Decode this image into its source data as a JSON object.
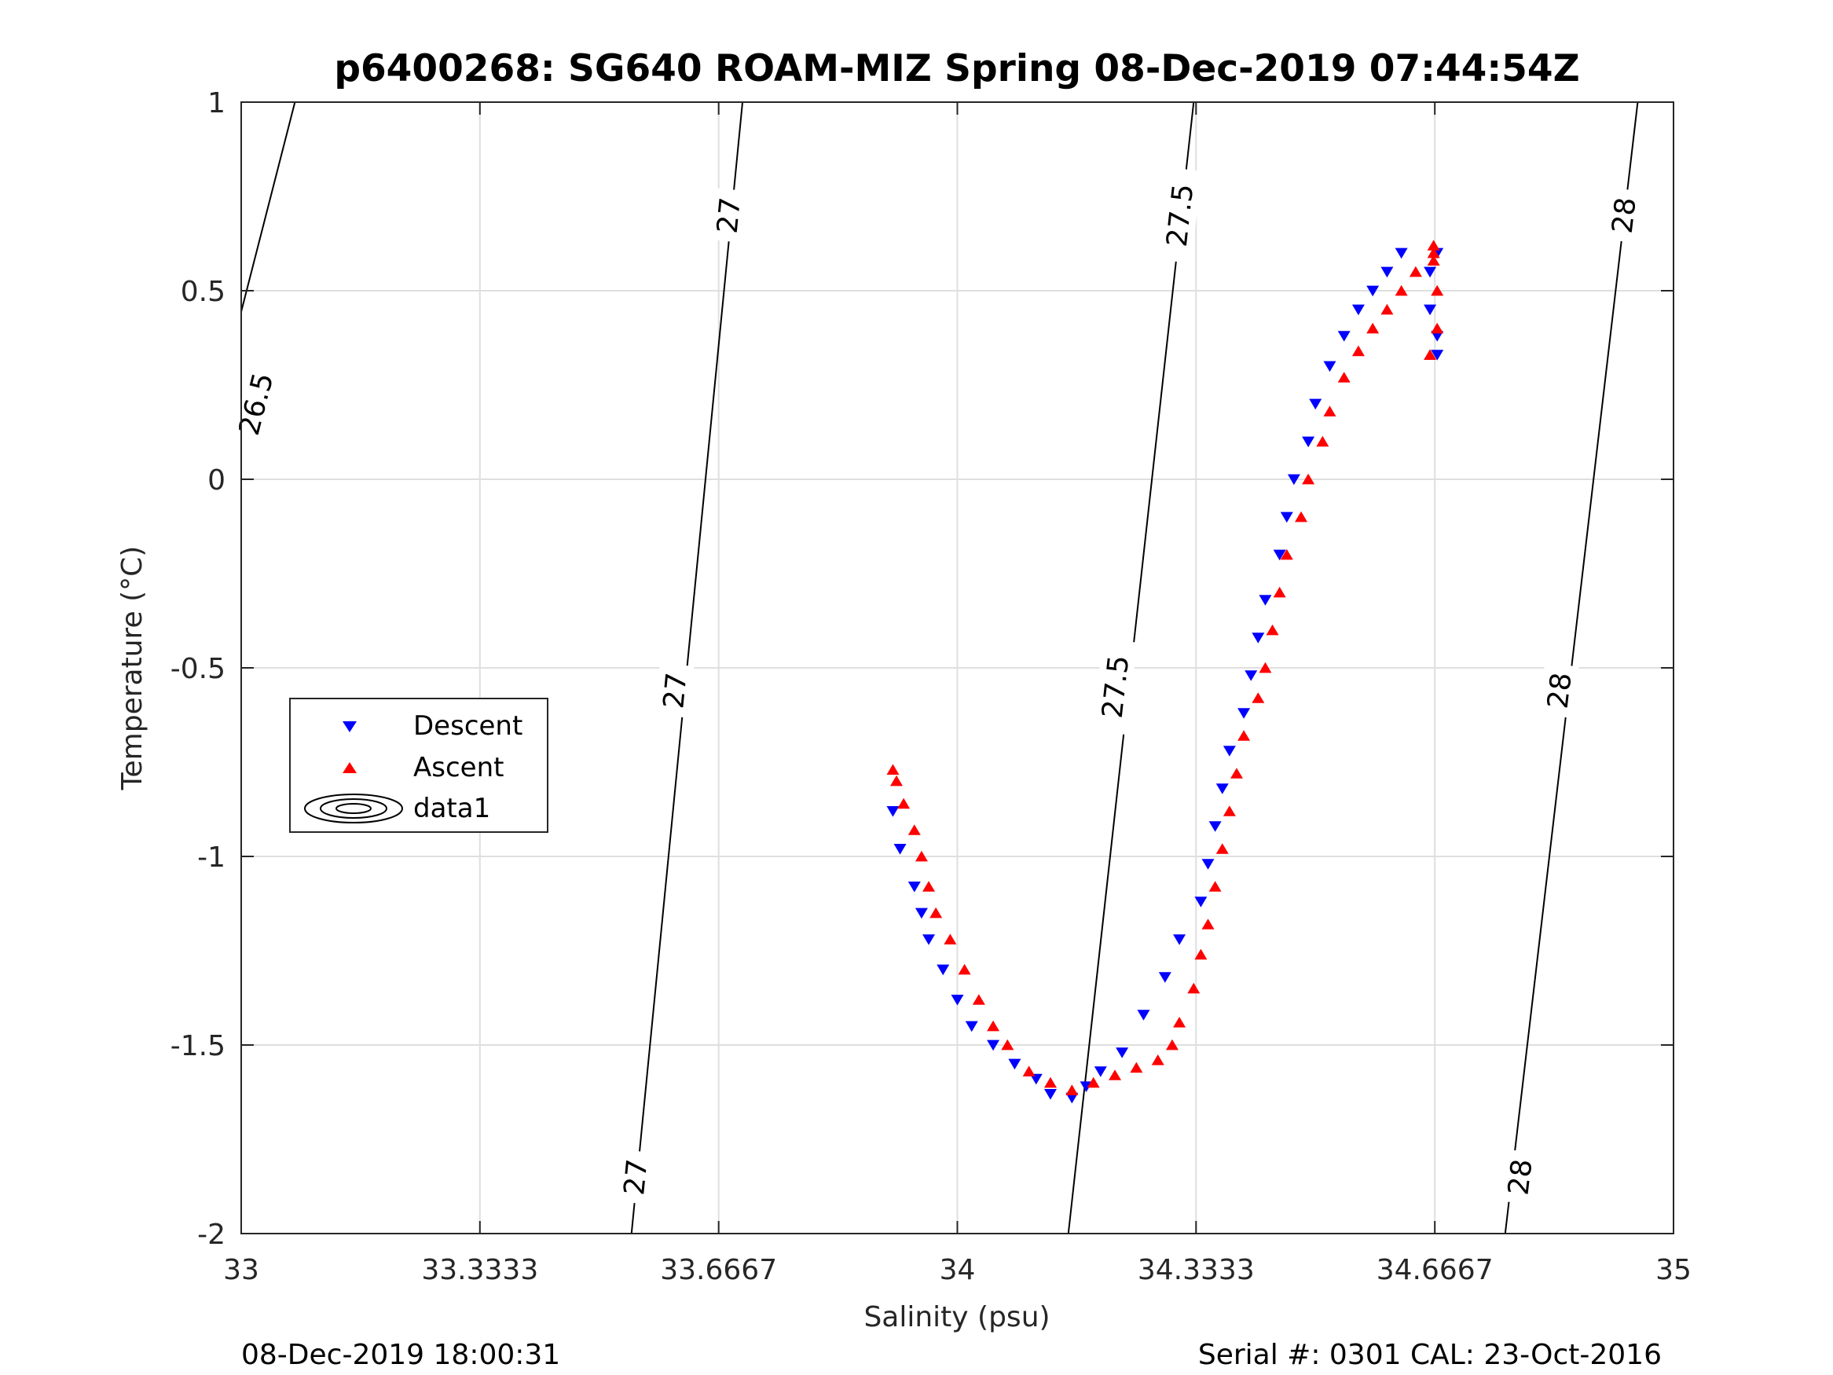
{
  "chart_data": {
    "type": "scatter",
    "title": "p6400268: SG640 ROAM-MIZ Spring 08-Dec-2019 07:44:54Z",
    "xlabel": "Salinity (psu)",
    "ylabel": "Temperature (°C)",
    "xlim": [
      33,
      35
    ],
    "ylim": [
      -2,
      1
    ],
    "xticks": [
      33,
      33.3333,
      33.6667,
      34,
      34.3333,
      34.6667,
      35
    ],
    "xtick_labels": [
      "33",
      "33.3333",
      "33.6667",
      "34",
      "34.3333",
      "34.6667",
      "35"
    ],
    "yticks": [
      -2,
      -1.5,
      -1,
      -0.5,
      0,
      0.5,
      1
    ],
    "ytick_labels": [
      "-2",
      "-1.5",
      "-1",
      "-0.5",
      "0",
      "0.5",
      "1"
    ],
    "grid": true,
    "legend_position": "left-middle",
    "series": [
      {
        "name": "Descent",
        "marker": "triangle-down",
        "color": "#0000ff",
        "x": [
          34.62,
          34.6,
          34.58,
          34.56,
          34.54,
          34.52,
          34.5,
          34.49,
          34.47,
          34.46,
          34.45,
          34.43,
          34.42,
          34.41,
          34.4,
          34.38,
          34.37,
          34.36,
          34.35,
          34.34,
          34.31,
          34.29,
          34.26,
          34.23,
          34.2,
          34.18,
          34.16,
          34.13,
          34.11,
          34.08,
          34.05,
          34.02,
          34.0,
          33.98,
          33.96,
          33.95,
          33.94,
          33.92,
          33.91,
          34.66,
          34.66,
          34.67,
          34.67,
          34.67
        ],
        "y": [
          0.6,
          0.55,
          0.5,
          0.45,
          0.38,
          0.3,
          0.2,
          0.1,
          0.0,
          -0.1,
          -0.2,
          -0.32,
          -0.42,
          -0.52,
          -0.62,
          -0.72,
          -0.82,
          -0.92,
          -1.02,
          -1.12,
          -1.22,
          -1.32,
          -1.42,
          -1.52,
          -1.57,
          -1.61,
          -1.64,
          -1.63,
          -1.59,
          -1.55,
          -1.5,
          -1.45,
          -1.38,
          -1.3,
          -1.22,
          -1.15,
          -1.08,
          -0.98,
          -0.88,
          0.55,
          0.45,
          0.38,
          0.33,
          0.6
        ]
      },
      {
        "name": "Ascent",
        "marker": "triangle-up",
        "color": "#ff0000",
        "x": [
          34.665,
          34.64,
          34.62,
          34.6,
          34.58,
          34.56,
          34.54,
          34.52,
          34.51,
          34.49,
          34.48,
          34.46,
          34.45,
          34.44,
          34.43,
          34.42,
          34.4,
          34.39,
          34.38,
          34.37,
          34.36,
          34.35,
          34.34,
          34.33,
          34.31,
          34.3,
          34.28,
          34.25,
          34.22,
          34.19,
          34.16,
          34.13,
          34.1,
          34.07,
          34.05,
          34.03,
          34.01,
          33.99,
          33.97,
          33.96,
          33.95,
          33.94,
          33.925,
          33.915,
          33.91,
          34.665,
          34.67,
          34.67,
          34.66,
          34.665
        ],
        "y": [
          0.6,
          0.55,
          0.5,
          0.45,
          0.4,
          0.34,
          0.27,
          0.18,
          0.1,
          0.0,
          -0.1,
          -0.2,
          -0.3,
          -0.4,
          -0.5,
          -0.58,
          -0.68,
          -0.78,
          -0.88,
          -0.98,
          -1.08,
          -1.18,
          -1.26,
          -1.35,
          -1.44,
          -1.5,
          -1.54,
          -1.56,
          -1.58,
          -1.6,
          -1.62,
          -1.6,
          -1.57,
          -1.5,
          -1.45,
          -1.38,
          -1.3,
          -1.22,
          -1.15,
          -1.08,
          -1.0,
          -0.93,
          -0.86,
          -0.8,
          -0.77,
          0.62,
          0.5,
          0.4,
          0.33,
          0.58
        ]
      }
    ],
    "contours": [
      {
        "value": 26.5,
        "label": "26.5",
        "x_at_ymax": 33.075,
        "x_at_ymin": 32.67,
        "label_positions": [
          [
            33.02,
            0.2
          ]
        ]
      },
      {
        "value": 27,
        "label": "27",
        "x_at_ymax": 33.7,
        "x_at_ymin": 33.545,
        "label_positions": [
          [
            33.68,
            0.7
          ],
          [
            33.605,
            -0.56
          ],
          [
            33.55,
            -1.85
          ]
        ]
      },
      {
        "value": 27.5,
        "label": "27.5",
        "x_at_ymax": 34.33,
        "x_at_ymin": 34.155,
        "label_positions": [
          [
            34.31,
            0.7
          ],
          [
            34.22,
            -0.55
          ]
        ]
      },
      {
        "value": 28,
        "label": "28",
        "x_at_ymax": 34.95,
        "x_at_ymin": 34.765,
        "label_positions": [
          [
            34.93,
            0.7
          ],
          [
            34.84,
            -0.56
          ],
          [
            34.785,
            -1.85
          ]
        ]
      }
    ],
    "legend_entries": [
      "Descent",
      "Ascent",
      "data1"
    ]
  },
  "footer": {
    "left": "08-Dec-2019 18:00:31",
    "right": "Serial #: 0301  CAL: 23-Oct-2016"
  }
}
